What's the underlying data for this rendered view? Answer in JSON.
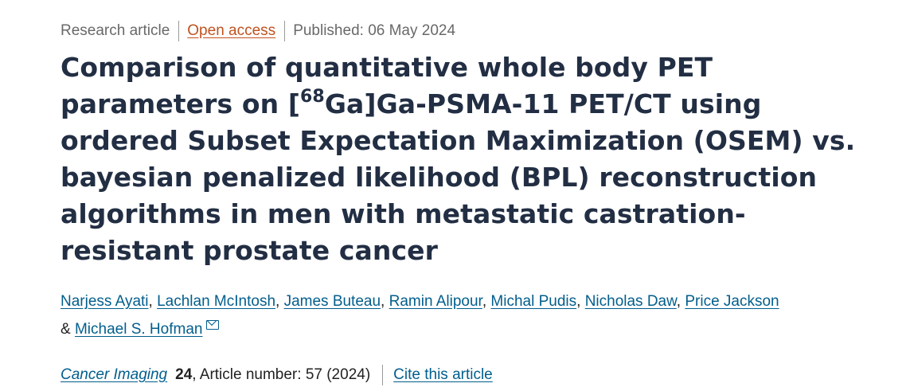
{
  "meta": {
    "article_type": "Research article",
    "access": "Open access",
    "published": "Published: 06 May 2024"
  },
  "title": {
    "part1": "Comparison of quantitative whole body PET parameters on [",
    "superscript": "68",
    "part2": "Ga]Ga-PSMA-11 PET/CT using ordered Subset Expectation Maximization (OSEM) vs. bayesian penalized likelihood (BPL) reconstruction algorithms in men with metastatic castration-resistant prostate cancer"
  },
  "authors": [
    {
      "name": "Narjess Ayati",
      "sep": ", "
    },
    {
      "name": "Lachlan McIntosh",
      "sep": ", "
    },
    {
      "name": "James Buteau",
      "sep": ", "
    },
    {
      "name": "Ramin Alipour",
      "sep": ", "
    },
    {
      "name": "Michal Pudis",
      "sep": ", "
    },
    {
      "name": "Nicholas Daw",
      "sep": ", "
    },
    {
      "name": "Price Jackson",
      "sep": " & "
    },
    {
      "name": "Michael S. Hofman",
      "sep": ""
    }
  ],
  "icons": {
    "corresponding_author": "mail-icon"
  },
  "citation": {
    "journal": "Cancer Imaging",
    "volume": "24",
    "details": ", Article number: 57 (2024)",
    "cite_link": "Cite this article"
  }
}
